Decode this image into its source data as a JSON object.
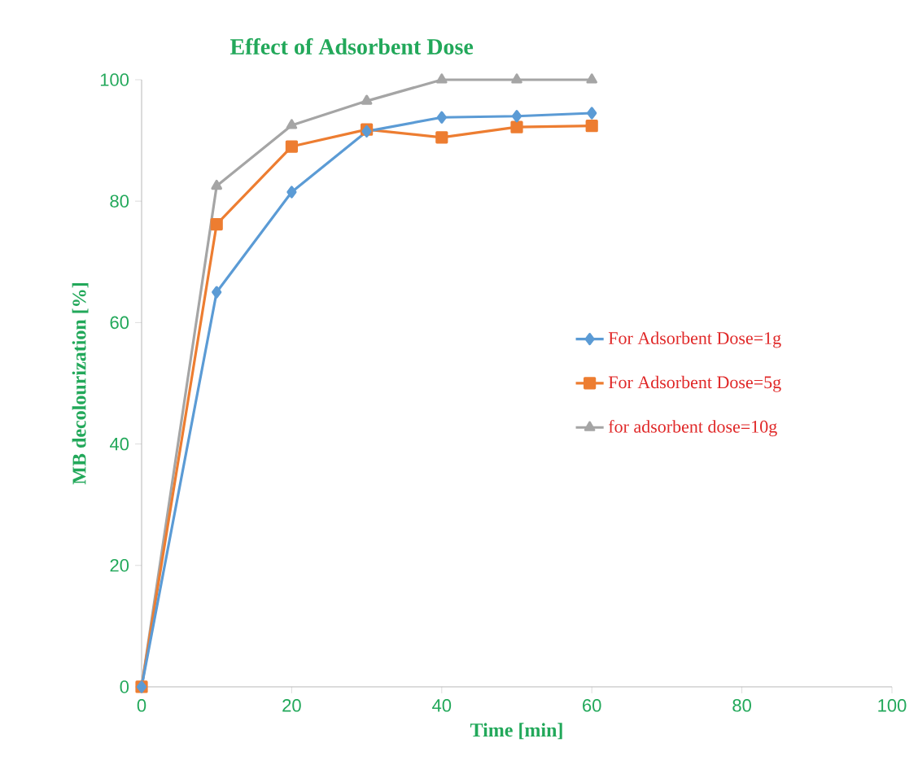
{
  "chart_data": {
    "type": "line",
    "title": "Effect of Adsorbent Dose",
    "xlabel": "Time [min]",
    "ylabel": "MB decolourization [%]",
    "x": [
      0,
      10,
      20,
      30,
      40,
      50,
      60
    ],
    "series": [
      {
        "name": "For Adsorbent Dose=1g",
        "color": "#5b9bd5",
        "marker": "diamond",
        "values": [
          0,
          65,
          81.5,
          91.5,
          93.8,
          94,
          94.5
        ]
      },
      {
        "name": "For Adsorbent Dose=5g",
        "color": "#ed7d31",
        "marker": "square",
        "values": [
          0,
          76.2,
          89,
          91.8,
          90.5,
          92.2,
          92.4
        ]
      },
      {
        "name": "for adsorbent dose=10g",
        "color": "#a5a5a5",
        "marker": "triangle",
        "values": [
          0,
          82.5,
          92.5,
          96.5,
          100,
          100,
          100
        ]
      }
    ],
    "xlim": [
      0,
      100
    ],
    "xticks": [
      0,
      20,
      40,
      60,
      80,
      100
    ],
    "ylim": [
      0,
      100
    ],
    "yticks": [
      0,
      20,
      40,
      60,
      80,
      100
    ],
    "grid": false,
    "legend": "right",
    "line_style": "solid"
  }
}
